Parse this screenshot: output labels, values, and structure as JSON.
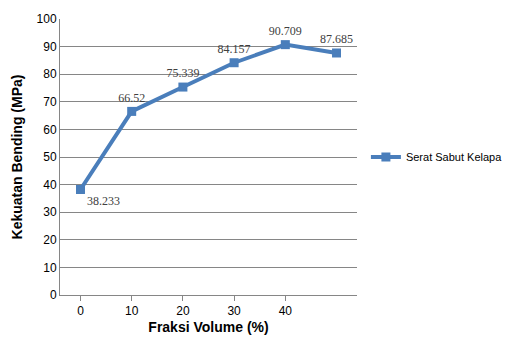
{
  "chart_data": {
    "type": "line",
    "x_label": "Fraksi Volume (%)",
    "y_label": "Kekuatan Bending (MPa)",
    "categories": [
      "0",
      "10",
      "20",
      "30",
      "40",
      null
    ],
    "series": [
      {
        "name": "Serat Sabut Kelapa",
        "color": "#4a7ebb",
        "marker": "square",
        "values": [
          38.233,
          66.52,
          75.339,
          84.157,
          90.709,
          87.685
        ]
      }
    ],
    "ylim": [
      0,
      100
    ],
    "yticks": [
      0,
      10,
      20,
      30,
      40,
      50,
      60,
      70,
      80,
      90,
      100
    ],
    "grid": true,
    "legend": "right",
    "data_labels": true
  }
}
